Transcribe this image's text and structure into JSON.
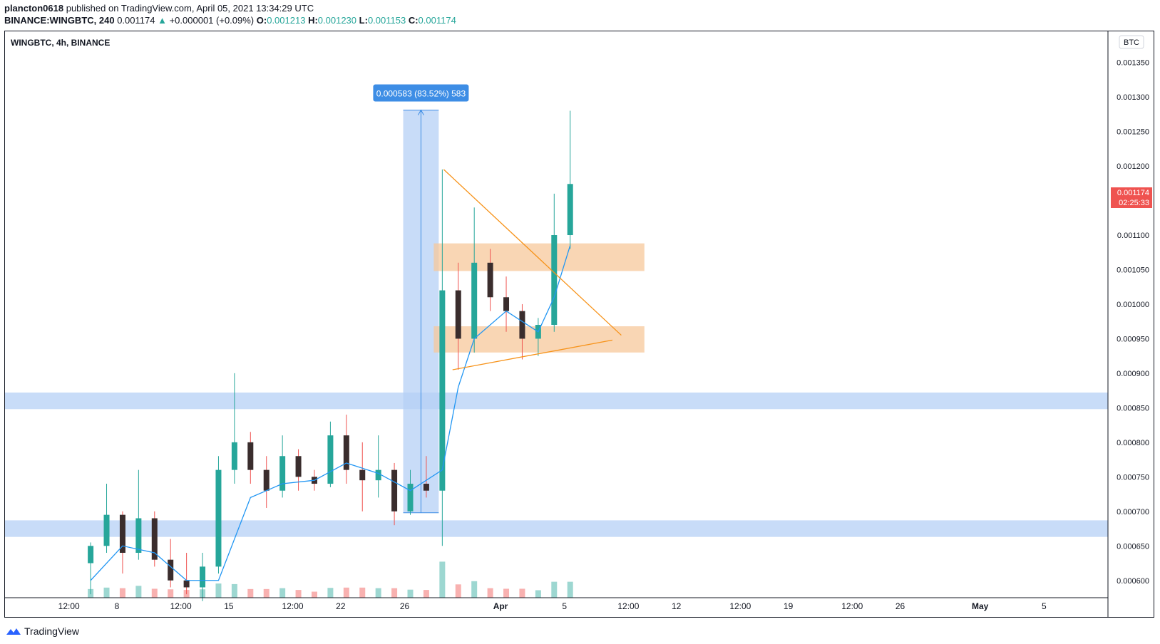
{
  "header": {
    "publisher": "plancton0618",
    "published_text": "published on TradingView.com, April 05, 2021 13:34:29 UTC",
    "symbol_full": "BINANCE:WINGBTC, 240",
    "last_price": "0.001174",
    "change_text": "+0.000001 (+0.09%)",
    "o_label": "O:",
    "o_value": "0.001213",
    "h_label": "H:",
    "h_value": "0.001230",
    "l_label": "L:",
    "l_value": "0.001153",
    "c_label": "C:",
    "c_value": "0.001174"
  },
  "chart_title": "WINGBTC, 4h, BINANCE",
  "currency_button": "BTC",
  "price_label": {
    "price": "0.001174",
    "countdown": "02:25:33"
  },
  "measure_label": "0.000583 (83.52%) 583",
  "footer": {
    "brand": "TradingView"
  },
  "colors": {
    "up": "#26a69a",
    "down": "#ef5350",
    "ma": "#2196f3",
    "zone": "#f7c89b",
    "band": "#b6d0f5",
    "measure": "#3d8de5",
    "trendline": "#f7931a"
  },
  "chart_data": {
    "type": "candlestick",
    "symbol": "WINGBTC",
    "interval": "4h",
    "exchange": "BINANCE",
    "ylim": [
      0.000575,
      0.001395
    ],
    "y_ticks": [
      "0.001350",
      "0.001300",
      "0.001250",
      "0.001200",
      "0.001150",
      "0.001100",
      "0.001050",
      "0.001000",
      "0.000950",
      "0.000900",
      "0.000850",
      "0.000800",
      "0.000750",
      "0.000700",
      "0.000650",
      "0.000600"
    ],
    "x_ticks": [
      "12:00",
      "8",
      "12:00",
      "15",
      "12:00",
      "22",
      "26",
      "Apr",
      "5",
      "12:00",
      "12",
      "12:00",
      "19",
      "12:00",
      "26",
      "May",
      "5"
    ],
    "candles": [
      {
        "x": "2021-03-06",
        "o": 0.000625,
        "h": 0.000655,
        "l": 0.00058,
        "c": 0.00065
      },
      {
        "x": "2021-03-07",
        "o": 0.00065,
        "h": 0.00074,
        "l": 0.00064,
        "c": 0.000695
      },
      {
        "x": "2021-03-08",
        "o": 0.000695,
        "h": 0.0007,
        "l": 0.00061,
        "c": 0.00064
      },
      {
        "x": "2021-03-09",
        "o": 0.00064,
        "h": 0.00076,
        "l": 0.00063,
        "c": 0.00069
      },
      {
        "x": "2021-03-10",
        "o": 0.00069,
        "h": 0.0007,
        "l": 0.00062,
        "c": 0.00063
      },
      {
        "x": "2021-03-11",
        "o": 0.00063,
        "h": 0.00066,
        "l": 0.00059,
        "c": 0.0006
      },
      {
        "x": "2021-03-12",
        "o": 0.0006,
        "h": 0.00064,
        "l": 0.00058,
        "c": 0.00059
      },
      {
        "x": "2021-03-13",
        "o": 0.00059,
        "h": 0.00064,
        "l": 0.00057,
        "c": 0.00062
      },
      {
        "x": "2021-03-14",
        "o": 0.00062,
        "h": 0.00078,
        "l": 0.00061,
        "c": 0.00076
      },
      {
        "x": "2021-03-15",
        "o": 0.00076,
        "h": 0.0009,
        "l": 0.00074,
        "c": 0.0008
      },
      {
        "x": "2021-03-16",
        "o": 0.0008,
        "h": 0.000815,
        "l": 0.00074,
        "c": 0.00076
      },
      {
        "x": "2021-03-17",
        "o": 0.00076,
        "h": 0.00078,
        "l": 0.000705,
        "c": 0.00073
      },
      {
        "x": "2021-03-18",
        "o": 0.00073,
        "h": 0.00081,
        "l": 0.00072,
        "c": 0.00078
      },
      {
        "x": "2021-03-19",
        "o": 0.00078,
        "h": 0.00079,
        "l": 0.00073,
        "c": 0.00075
      },
      {
        "x": "2021-03-20",
        "o": 0.00075,
        "h": 0.00076,
        "l": 0.00073,
        "c": 0.00074
      },
      {
        "x": "2021-03-21",
        "o": 0.00074,
        "h": 0.00083,
        "l": 0.000735,
        "c": 0.00081
      },
      {
        "x": "2021-03-22",
        "o": 0.00081,
        "h": 0.00084,
        "l": 0.00074,
        "c": 0.00076
      },
      {
        "x": "2021-03-23",
        "o": 0.00076,
        "h": 0.0008,
        "l": 0.0007,
        "c": 0.000745
      },
      {
        "x": "2021-03-24",
        "o": 0.000745,
        "h": 0.00081,
        "l": 0.00072,
        "c": 0.00076
      },
      {
        "x": "2021-03-25",
        "o": 0.00076,
        "h": 0.00077,
        "l": 0.00068,
        "c": 0.0007
      },
      {
        "x": "2021-03-26",
        "o": 0.0007,
        "h": 0.00076,
        "l": 0.000695,
        "c": 0.00074
      },
      {
        "x": "2021-03-27",
        "o": 0.00074,
        "h": 0.00078,
        "l": 0.00072,
        "c": 0.00073
      },
      {
        "x": "2021-03-28",
        "o": 0.00073,
        "h": 0.001195,
        "l": 0.00065,
        "c": 0.00102
      },
      {
        "x": "2021-03-29",
        "o": 0.00102,
        "h": 0.00106,
        "l": 0.000905,
        "c": 0.00095
      },
      {
        "x": "2021-03-30",
        "o": 0.00095,
        "h": 0.00114,
        "l": 0.00093,
        "c": 0.00106
      },
      {
        "x": "2021-03-31",
        "o": 0.00106,
        "h": 0.00108,
        "l": 0.00099,
        "c": 0.00101
      },
      {
        "x": "2021-04-01",
        "o": 0.00101,
        "h": 0.00104,
        "l": 0.00096,
        "c": 0.00099
      },
      {
        "x": "2021-04-02",
        "o": 0.00099,
        "h": 0.001,
        "l": 0.00092,
        "c": 0.00095
      },
      {
        "x": "2021-04-03",
        "o": 0.00095,
        "h": 0.00098,
        "l": 0.000925,
        "c": 0.00097
      },
      {
        "x": "2021-04-04",
        "o": 0.00097,
        "h": 0.00116,
        "l": 0.00096,
        "c": 0.0011
      },
      {
        "x": "2021-04-05",
        "o": 0.0011,
        "h": 0.00128,
        "l": 0.00108,
        "c": 0.001174
      }
    ],
    "volume_note": "volume histogram at bottom",
    "ma_series": [
      {
        "x": "2021-03-06",
        "y": 0.0006
      },
      {
        "x": "2021-03-08",
        "y": 0.00065
      },
      {
        "x": "2021-03-10",
        "y": 0.00064
      },
      {
        "x": "2021-03-12",
        "y": 0.0006
      },
      {
        "x": "2021-03-14",
        "y": 0.0006
      },
      {
        "x": "2021-03-16",
        "y": 0.00072
      },
      {
        "x": "2021-03-18",
        "y": 0.00074
      },
      {
        "x": "2021-03-20",
        "y": 0.000745
      },
      {
        "x": "2021-03-22",
        "y": 0.00077
      },
      {
        "x": "2021-03-24",
        "y": 0.000755
      },
      {
        "x": "2021-03-26",
        "y": 0.00073
      },
      {
        "x": "2021-03-28",
        "y": 0.00076
      },
      {
        "x": "2021-03-29",
        "y": 0.00088
      },
      {
        "x": "2021-03-30",
        "y": 0.00095
      },
      {
        "x": "2021-04-01",
        "y": 0.00099
      },
      {
        "x": "2021-04-03",
        "y": 0.00096
      },
      {
        "x": "2021-04-04",
        "y": 0.00101
      },
      {
        "x": "2021-04-05",
        "y": 0.001085
      }
    ],
    "zones": [
      {
        "kind": "support_resistance",
        "ymin": 0.001048,
        "ymax": 0.001088,
        "xfrom": "2021-03-28",
        "xto": "2021-04-10"
      },
      {
        "kind": "support_resistance",
        "ymin": 0.00093,
        "ymax": 0.000968,
        "xfrom": "2021-03-28",
        "xto": "2021-04-10"
      },
      {
        "kind": "horizontal_band",
        "ymin": 0.000848,
        "ymax": 0.000872
      },
      {
        "kind": "horizontal_band",
        "ymin": 0.000663,
        "ymax": 0.000687
      }
    ],
    "measure": {
      "from": 0.000698,
      "to": 0.001281,
      "label": "0.000583 (83.52%) 583"
    }
  }
}
